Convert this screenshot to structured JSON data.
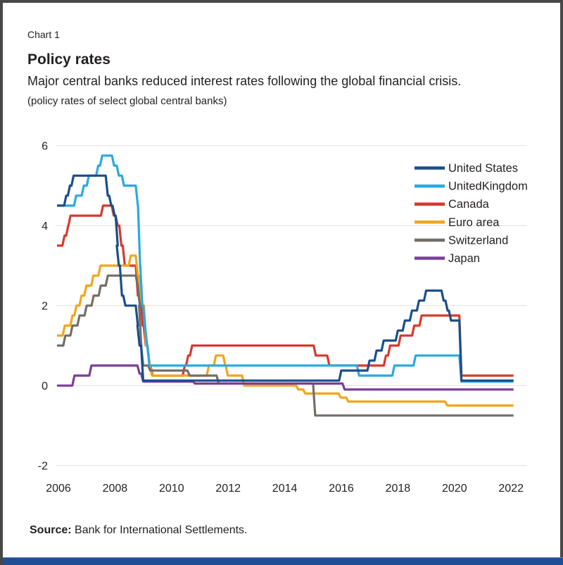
{
  "header": {
    "chart_number": "Chart 1",
    "title": "Policy rates",
    "subtitle": "Major central banks reduced interest rates following the global financial crisis.",
    "units_note": "(policy rates of select global central banks)"
  },
  "source": {
    "label": "Source:",
    "text": "Bank for International Settlements."
  },
  "colors": {
    "frame_border": "#474747",
    "bottom_bar": "#1f4e97",
    "gridline": "#e9e6e3",
    "text": "#231f20"
  },
  "chart_data": {
    "type": "line",
    "title": "Policy rates",
    "unit": "percent",
    "grid": "horizontal",
    "legend_position": "top-right",
    "x_axis": {
      "ticks": [
        2006,
        2008,
        2010,
        2012,
        2014,
        2016,
        2018,
        2020,
        2022
      ],
      "range": [
        2005.9,
        2022.6
      ]
    },
    "y_axis": {
      "ticks": [
        6,
        4,
        2,
        0,
        -2
      ],
      "range": [
        -2,
        6
      ]
    },
    "note": "points are [year, policy rate %] at change dates; lines are step-wise",
    "draw_order": [
      "Canada",
      "Euro area",
      "Switzerland",
      "Japan",
      "UnitedKingdom",
      "United States"
    ],
    "series": [
      {
        "name": "United States",
        "color": "#1a4e8a",
        "points": [
          [
            2005.95,
            4.5
          ],
          [
            2006.24,
            4.75
          ],
          [
            2006.37,
            5.0
          ],
          [
            2006.5,
            5.25
          ],
          [
            2007.71,
            4.75
          ],
          [
            2007.83,
            4.5
          ],
          [
            2007.95,
            4.25
          ],
          [
            2008.06,
            3.5
          ],
          [
            2008.1,
            3.0
          ],
          [
            2008.21,
            2.25
          ],
          [
            2008.33,
            2.0
          ],
          [
            2008.77,
            1.5
          ],
          [
            2008.83,
            1.0
          ],
          [
            2008.96,
            0.125
          ],
          [
            2015.96,
            0.375
          ],
          [
            2016.96,
            0.625
          ],
          [
            2017.21,
            0.875
          ],
          [
            2017.46,
            1.125
          ],
          [
            2017.96,
            1.375
          ],
          [
            2018.21,
            1.625
          ],
          [
            2018.46,
            1.875
          ],
          [
            2018.71,
            2.125
          ],
          [
            2018.96,
            2.375
          ],
          [
            2019.58,
            2.125
          ],
          [
            2019.72,
            1.875
          ],
          [
            2019.84,
            1.625
          ],
          [
            2020.21,
            0.125
          ],
          [
            2022.05,
            0.125
          ]
        ]
      },
      {
        "name": "UnitedKingdom",
        "color": "#2aa9e0",
        "points": [
          [
            2005.95,
            4.5
          ],
          [
            2006.59,
            4.75
          ],
          [
            2006.86,
            5.0
          ],
          [
            2007.04,
            5.25
          ],
          [
            2007.37,
            5.5
          ],
          [
            2007.51,
            5.75
          ],
          [
            2007.93,
            5.5
          ],
          [
            2008.1,
            5.25
          ],
          [
            2008.28,
            5.0
          ],
          [
            2008.77,
            4.5
          ],
          [
            2008.85,
            3.0
          ],
          [
            2008.93,
            2.0
          ],
          [
            2009.03,
            1.5
          ],
          [
            2009.1,
            1.0
          ],
          [
            2009.18,
            0.5
          ],
          [
            2016.59,
            0.25
          ],
          [
            2017.84,
            0.5
          ],
          [
            2018.59,
            0.75
          ],
          [
            2020.21,
            0.1
          ],
          [
            2022.05,
            0.1
          ]
        ]
      },
      {
        "name": "Canada",
        "color": "#d6392e",
        "points": [
          [
            2005.95,
            3.5
          ],
          [
            2006.18,
            3.75
          ],
          [
            2006.31,
            4.0
          ],
          [
            2006.39,
            4.25
          ],
          [
            2007.54,
            4.5
          ],
          [
            2007.92,
            4.25
          ],
          [
            2008.06,
            4.0
          ],
          [
            2008.19,
            3.5
          ],
          [
            2008.31,
            3.0
          ],
          [
            2008.77,
            2.25
          ],
          [
            2008.94,
            1.5
          ],
          [
            2009.05,
            1.0
          ],
          [
            2009.19,
            0.5
          ],
          [
            2009.29,
            0.25
          ],
          [
            2010.43,
            0.5
          ],
          [
            2010.55,
            0.75
          ],
          [
            2010.69,
            1.0
          ],
          [
            2015.06,
            0.75
          ],
          [
            2015.54,
            0.5
          ],
          [
            2017.54,
            0.75
          ],
          [
            2017.69,
            1.0
          ],
          [
            2018.06,
            1.25
          ],
          [
            2018.54,
            1.5
          ],
          [
            2018.8,
            1.75
          ],
          [
            2020.21,
            0.25
          ],
          [
            2022.05,
            0.25
          ]
        ]
      },
      {
        "name": "Euro area",
        "color": "#f1a51d",
        "points": [
          [
            2005.95,
            1.25
          ],
          [
            2006.19,
            1.5
          ],
          [
            2006.46,
            1.75
          ],
          [
            2006.6,
            2.0
          ],
          [
            2006.78,
            2.25
          ],
          [
            2006.95,
            2.5
          ],
          [
            2007.2,
            2.75
          ],
          [
            2007.45,
            3.0
          ],
          [
            2008.52,
            3.25
          ],
          [
            2008.77,
            2.75
          ],
          [
            2008.87,
            2.25
          ],
          [
            2008.94,
            2.0
          ],
          [
            2009.06,
            1.0
          ],
          [
            2009.19,
            0.5
          ],
          [
            2009.27,
            0.25
          ],
          [
            2011.28,
            0.5
          ],
          [
            2011.53,
            0.75
          ],
          [
            2011.86,
            0.5
          ],
          [
            2011.95,
            0.25
          ],
          [
            2012.53,
            0.0
          ],
          [
            2014.44,
            -0.1
          ],
          [
            2014.69,
            -0.2
          ],
          [
            2015.94,
            -0.3
          ],
          [
            2016.21,
            -0.4
          ],
          [
            2019.71,
            -0.5
          ],
          [
            2022.05,
            -0.5
          ]
        ]
      },
      {
        "name": "Switzerland",
        "color": "#736e68",
        "points": [
          [
            2005.95,
            1.0
          ],
          [
            2006.21,
            1.25
          ],
          [
            2006.46,
            1.5
          ],
          [
            2006.71,
            1.75
          ],
          [
            2006.96,
            2.0
          ],
          [
            2007.21,
            2.25
          ],
          [
            2007.46,
            2.5
          ],
          [
            2007.71,
            2.75
          ],
          [
            2008.77,
            2.5
          ],
          [
            2008.84,
            2.0
          ],
          [
            2008.89,
            1.0
          ],
          [
            2008.96,
            0.5
          ],
          [
            2009.21,
            0.375
          ],
          [
            2010.6,
            0.25
          ],
          [
            2011.63,
            0.05
          ],
          [
            2015.04,
            -0.75
          ],
          [
            2022.05,
            -0.75
          ]
        ]
      },
      {
        "name": "Japan",
        "color": "#7a3e98",
        "points": [
          [
            2005.95,
            0.0
          ],
          [
            2006.53,
            0.25
          ],
          [
            2007.13,
            0.5
          ],
          [
            2008.83,
            0.3
          ],
          [
            2008.96,
            0.1
          ],
          [
            2010.79,
            0.05
          ],
          [
            2016.08,
            -0.1
          ],
          [
            2022.05,
            -0.1
          ]
        ]
      }
    ]
  }
}
